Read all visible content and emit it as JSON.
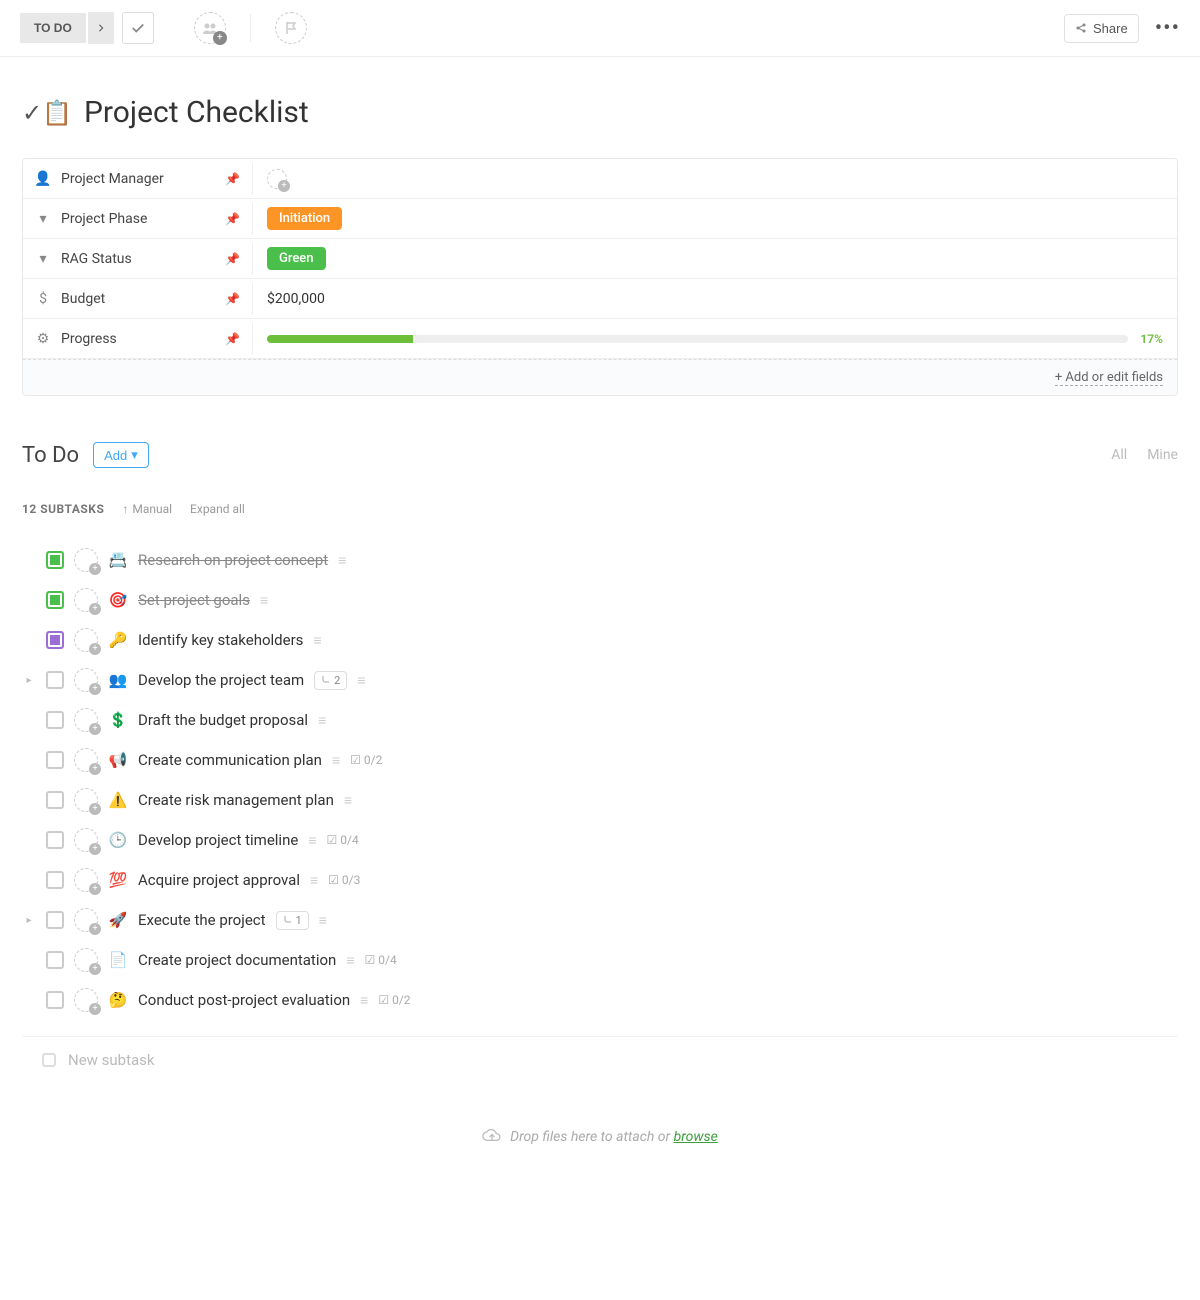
{
  "toolbar": {
    "status_label": "TO DO",
    "share_label": "Share"
  },
  "title": {
    "emoji_prefix": "✓📋",
    "text": "Project Checklist"
  },
  "fields": [
    {
      "icon": "👤",
      "label": "Project Manager",
      "pinned": true,
      "value_type": "assignee"
    },
    {
      "icon": "▾",
      "label": "Project Phase",
      "pinned": true,
      "value_type": "badge",
      "badge_text": "Initiation",
      "badge_color": "orange"
    },
    {
      "icon": "▾",
      "label": "RAG Status",
      "pinned": true,
      "value_type": "badge",
      "badge_text": "Green",
      "badge_color": "green"
    },
    {
      "icon": "$",
      "label": "Budget",
      "pinned": true,
      "value_type": "text",
      "text": "$200,000"
    },
    {
      "icon": "⚙",
      "label": "Progress",
      "pinned": true,
      "value_type": "progress",
      "percent": 17,
      "percent_label": "17%"
    }
  ],
  "add_fields_label": "+ Add or edit fields",
  "section": {
    "title": "To Do",
    "add_label": "Add",
    "filter_all": "All",
    "filter_mine": "Mine"
  },
  "subtask_bar": {
    "count_label": "12 SUBTASKS",
    "sort_label": "Manual",
    "expand_label": "Expand all"
  },
  "tasks": [
    {
      "status": "done",
      "emoji": "📇",
      "title": "Research on project concept",
      "completed": true
    },
    {
      "status": "done",
      "emoji": "🎯",
      "title": "Set project goals",
      "completed": true
    },
    {
      "status": "purple",
      "emoji": "🔑",
      "title": "Identify key stakeholders"
    },
    {
      "status": "open",
      "emoji": "👥",
      "title": "Develop the project team",
      "expandable": true,
      "subtask_badge": "2"
    },
    {
      "status": "open",
      "emoji": "💲",
      "title": "Draft the budget proposal"
    },
    {
      "status": "open",
      "emoji": "📢",
      "title": "Create communication plan",
      "checklist": "0/2"
    },
    {
      "status": "open",
      "emoji": "⚠️",
      "title": "Create risk management plan"
    },
    {
      "status": "open",
      "emoji": "🕒",
      "title": "Develop project timeline",
      "checklist": "0/4"
    },
    {
      "status": "open",
      "emoji": "💯",
      "title": "Acquire project approval",
      "checklist": "0/3"
    },
    {
      "status": "open",
      "emoji": "🚀",
      "title": "Execute the project",
      "expandable": true,
      "subtask_badge": "1"
    },
    {
      "status": "open",
      "emoji": "📄",
      "title": "Create project documentation",
      "checklist": "0/4"
    },
    {
      "status": "open",
      "emoji": "🤔",
      "title": "Conduct post-project evaluation",
      "checklist": "0/2"
    }
  ],
  "new_subtask_placeholder": "New subtask",
  "dropzone": {
    "text": "Drop files here to attach or ",
    "link": "browse"
  },
  "colors": {
    "progress_fill": "#6dbf3b"
  }
}
